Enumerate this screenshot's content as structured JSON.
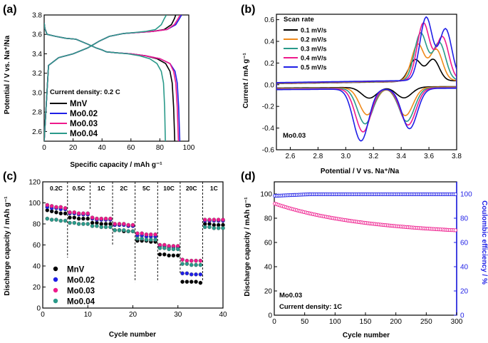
{
  "figure": {
    "panel_labels": [
      "(a)",
      "(b)",
      "(c)",
      "(d)"
    ]
  },
  "colors": {
    "MnV": "#000000",
    "Mo0.02": "#1f1fe6",
    "Mo0.03": "#ee1a8c",
    "Mo0.04": "#2a9a8a",
    "cv1": "#000000",
    "cv2": "#f08a1c",
    "cv3": "#2a9a8a",
    "cv4": "#ee1a8c",
    "cv5": "#1f1fe6",
    "right_axis": "#1f1fe6"
  },
  "chart_data": [
    {
      "id": "a",
      "type": "line",
      "xlabel": "Specific capacity / mAh g⁻¹",
      "ylabel": "Potential / V vs. Na⁺/Na",
      "xlim": [
        0,
        100
      ],
      "ylim": [
        2.5,
        3.8
      ],
      "xticks": [
        0,
        20,
        40,
        60,
        80,
        100
      ],
      "yticks": [
        2.6,
        2.8,
        3.0,
        3.2,
        3.4,
        3.6,
        3.8
      ],
      "annotation": "Current density: 0.2 C",
      "legend": [
        "MnV",
        "Mo0.02",
        "Mo0.03",
        "Mo0.04"
      ],
      "series": [
        {
          "name": "MnV",
          "max_capacity": 91,
          "charge_x": [
            0,
            3,
            10,
            20,
            30,
            38,
            45,
            55,
            65,
            75,
            83,
            88,
            90,
            91
          ],
          "charge_y": [
            2.5,
            3.28,
            3.36,
            3.4,
            3.46,
            3.53,
            3.58,
            3.61,
            3.62,
            3.63,
            3.65,
            3.7,
            3.76,
            3.8
          ],
          "discharge_x": [
            0,
            0.5,
            2,
            8,
            15,
            22,
            30,
            36,
            40,
            43,
            50,
            60,
            70,
            78,
            84,
            87,
            88.5,
            89.5,
            90.3
          ],
          "discharge_y": [
            3.72,
            3.66,
            3.6,
            3.58,
            3.56,
            3.55,
            3.5,
            3.46,
            3.44,
            3.42,
            3.41,
            3.4,
            3.38,
            3.35,
            3.3,
            3.22,
            3.1,
            2.85,
            2.5
          ]
        },
        {
          "name": "Mo0.02",
          "max_capacity": 95,
          "charge_x": [
            0,
            3,
            10,
            20,
            30,
            38,
            45,
            55,
            65,
            75,
            85,
            91,
            93.5,
            95
          ],
          "charge_y": [
            2.5,
            3.28,
            3.36,
            3.4,
            3.46,
            3.53,
            3.58,
            3.61,
            3.62,
            3.63,
            3.65,
            3.7,
            3.76,
            3.8
          ],
          "discharge_x": [
            0,
            0.5,
            2,
            8,
            15,
            22,
            30,
            36,
            40,
            43,
            50,
            60,
            70,
            80,
            87,
            90.5,
            92,
            93,
            93.8
          ],
          "discharge_y": [
            3.72,
            3.66,
            3.6,
            3.58,
            3.56,
            3.55,
            3.5,
            3.46,
            3.44,
            3.42,
            3.41,
            3.4,
            3.38,
            3.35,
            3.3,
            3.22,
            3.1,
            2.85,
            2.5
          ]
        },
        {
          "name": "Mo0.03",
          "max_capacity": 94,
          "charge_x": [
            0,
            3,
            10,
            20,
            30,
            38,
            45,
            55,
            65,
            75,
            85,
            90,
            92.5,
            94
          ],
          "charge_y": [
            2.5,
            3.28,
            3.36,
            3.4,
            3.46,
            3.53,
            3.58,
            3.61,
            3.62,
            3.63,
            3.65,
            3.7,
            3.76,
            3.8
          ],
          "discharge_x": [
            0,
            0.5,
            2,
            8,
            15,
            22,
            30,
            36,
            40,
            43,
            50,
            60,
            70,
            80,
            87,
            89.5,
            91,
            92,
            92.8
          ],
          "discharge_y": [
            3.72,
            3.66,
            3.6,
            3.58,
            3.56,
            3.55,
            3.5,
            3.46,
            3.44,
            3.42,
            3.41,
            3.4,
            3.38,
            3.35,
            3.3,
            3.22,
            3.1,
            2.85,
            2.5
          ]
        },
        {
          "name": "Mo0.04",
          "max_capacity": 84,
          "charge_x": [
            0,
            3,
            10,
            20,
            30,
            38,
            45,
            55,
            63,
            70,
            77,
            81,
            83,
            84.5
          ],
          "charge_y": [
            2.5,
            3.28,
            3.36,
            3.4,
            3.46,
            3.53,
            3.58,
            3.61,
            3.62,
            3.63,
            3.65,
            3.7,
            3.76,
            3.8
          ],
          "discharge_x": [
            0,
            0.5,
            2,
            8,
            15,
            22,
            30,
            36,
            40,
            43,
            50,
            58,
            66,
            73,
            78,
            81,
            82.5,
            83.3,
            83.8
          ],
          "discharge_y": [
            3.72,
            3.66,
            3.6,
            3.58,
            3.56,
            3.55,
            3.5,
            3.46,
            3.44,
            3.42,
            3.41,
            3.4,
            3.38,
            3.35,
            3.3,
            3.22,
            3.1,
            2.85,
            2.5
          ]
        }
      ]
    },
    {
      "id": "b",
      "type": "line",
      "xlabel": "Potential / V vs. Na⁺/Na",
      "ylabel": "Current / mA g⁻¹",
      "xlim": [
        2.5,
        3.8
      ],
      "ylim": [
        -0.6,
        0.65
      ],
      "xticks": [
        2.6,
        2.8,
        3.0,
        3.2,
        3.4,
        3.6,
        3.8
      ],
      "yticks": [
        -0.6,
        -0.4,
        -0.2,
        0.0,
        0.2,
        0.4,
        0.6
      ],
      "legend_title": "Scan rate",
      "annotation": "Mo0.03",
      "series": [
        {
          "name": "0.1 mV/s",
          "ox1": 0.2,
          "ox2": 0.2,
          "red1": -0.1,
          "red2": -0.1
        },
        {
          "name": "0.2 mV/s",
          "ox1": 0.34,
          "ox2": 0.29,
          "red1": -0.25,
          "red2": -0.26
        },
        {
          "name": "0.3 mV/s",
          "ox1": 0.44,
          "ox2": 0.35,
          "red1": -0.33,
          "red2": -0.31
        },
        {
          "name": "0.4 mV/s",
          "ox1": 0.53,
          "ox2": 0.4,
          "red1": -0.4,
          "red2": -0.34
        },
        {
          "name": "0.5 mV/s",
          "ox1": 0.58,
          "ox2": 0.47,
          "red1": -0.48,
          "red2": -0.37
        }
      ]
    },
    {
      "id": "c",
      "type": "scatter",
      "xlabel": "Cycle number",
      "ylabel": "Discharge capacity / mAh g⁻¹",
      "xlim": [
        0,
        40
      ],
      "ylim": [
        0,
        120
      ],
      "xticks": [
        0,
        10,
        20,
        30,
        40
      ],
      "yticks": [
        0,
        20,
        40,
        60,
        80,
        100,
        120
      ],
      "rates": [
        "0.2C",
        "0.5C",
        "1C",
        "2C",
        "5C",
        "10C",
        "20C",
        "1C"
      ],
      "legend": [
        "MnV",
        "Mo0.02",
        "Mo0.03",
        "Mo0.04"
      ],
      "series": [
        {
          "name": "MnV",
          "x": [
            1,
            2,
            3,
            4,
            5,
            6,
            7,
            8,
            9,
            10,
            11,
            12,
            13,
            14,
            15,
            16,
            17,
            18,
            19,
            20,
            21,
            22,
            23,
            24,
            25,
            26,
            27,
            28,
            29,
            30,
            31,
            32,
            33,
            34,
            35,
            36,
            37,
            38,
            39,
            40
          ],
          "y": [
            93,
            92,
            91,
            90,
            90,
            86,
            86,
            85,
            85,
            85,
            81,
            81,
            80,
            80,
            80,
            74,
            74,
            73,
            73,
            73,
            64,
            64,
            64,
            63,
            63,
            51,
            51,
            50,
            50,
            50,
            25,
            25,
            25,
            25,
            24,
            80,
            80,
            79,
            79,
            79
          ]
        },
        {
          "name": "Mo0.02",
          "x": [
            1,
            2,
            3,
            4,
            5,
            6,
            7,
            8,
            9,
            10,
            11,
            12,
            13,
            14,
            15,
            16,
            17,
            18,
            19,
            20,
            21,
            22,
            23,
            24,
            25,
            26,
            27,
            28,
            29,
            30,
            31,
            32,
            33,
            34,
            35,
            36,
            37,
            38,
            39,
            40
          ],
          "y": [
            96,
            95,
            95,
            94,
            94,
            90,
            90,
            89,
            89,
            89,
            85,
            84,
            84,
            84,
            84,
            79,
            79,
            79,
            78,
            78,
            69,
            69,
            68,
            68,
            68,
            59,
            59,
            58,
            58,
            58,
            33,
            33,
            32,
            32,
            32,
            83,
            83,
            83,
            83,
            83
          ]
        },
        {
          "name": "Mo0.03",
          "x": [
            1,
            2,
            3,
            4,
            5,
            6,
            7,
            8,
            9,
            10,
            11,
            12,
            13,
            14,
            15,
            16,
            17,
            18,
            19,
            20,
            21,
            22,
            23,
            24,
            25,
            26,
            27,
            28,
            29,
            30,
            31,
            32,
            33,
            34,
            35,
            36,
            37,
            38,
            39,
            40
          ],
          "y": [
            98,
            97,
            96,
            96,
            95,
            91,
            91,
            90,
            90,
            90,
            86,
            85,
            85,
            85,
            85,
            80,
            80,
            80,
            79,
            79,
            71,
            71,
            70,
            70,
            70,
            60,
            60,
            59,
            59,
            59,
            46,
            45,
            45,
            45,
            45,
            84,
            84,
            84,
            84,
            84
          ]
        },
        {
          "name": "Mo0.04",
          "x": [
            1,
            2,
            3,
            4,
            5,
            6,
            7,
            8,
            9,
            10,
            11,
            12,
            13,
            14,
            15,
            16,
            17,
            18,
            19,
            20,
            21,
            22,
            23,
            24,
            25,
            26,
            27,
            28,
            29,
            30,
            31,
            32,
            33,
            34,
            35,
            36,
            37,
            38,
            39,
            40
          ],
          "y": [
            85,
            84,
            84,
            83,
            83,
            81,
            81,
            80,
            80,
            80,
            78,
            78,
            77,
            77,
            77,
            74,
            74,
            74,
            73,
            73,
            66,
            66,
            65,
            65,
            65,
            57,
            57,
            56,
            56,
            56,
            42,
            42,
            41,
            41,
            41,
            77,
            77,
            76,
            76,
            76
          ]
        }
      ]
    },
    {
      "id": "d",
      "type": "scatter",
      "xlabel": "Cycle number",
      "ylabel": "Discharge capacity / mAh g⁻¹",
      "ylabel_right": "Coulombic efficiency / %",
      "xlim": [
        0,
        300
      ],
      "ylim": [
        0,
        110
      ],
      "ylim_right": [
        0,
        110
      ],
      "xticks": [
        0,
        50,
        100,
        150,
        200,
        250,
        300
      ],
      "yticks": [
        0,
        20,
        40,
        60,
        80,
        100
      ],
      "yticks_right": [
        0,
        20,
        40,
        60,
        80,
        100
      ],
      "annotation_sample": "Mo0.03",
      "annotation_density": "Current density: 1C",
      "series": [
        {
          "name": "Discharge capacity",
          "axis": "left",
          "start": 92,
          "end": 70,
          "cycles": 300
        },
        {
          "name": "Coulombic efficiency",
          "axis": "right",
          "start": 98.5,
          "end": 99.8,
          "cycles": 300
        }
      ]
    }
  ]
}
